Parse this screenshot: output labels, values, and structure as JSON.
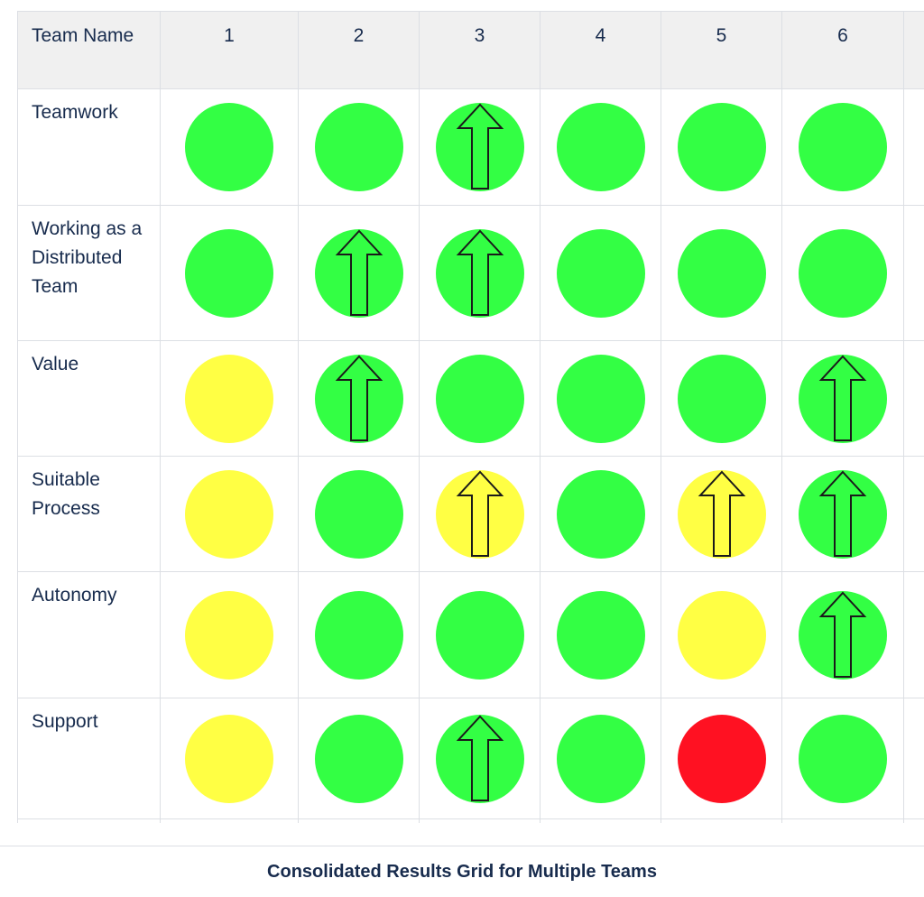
{
  "table": {
    "header": [
      "Team Name",
      "1",
      "2",
      "3",
      "4",
      "5",
      "6"
    ],
    "rows": [
      {
        "label": "Teamwork",
        "cells": [
          {
            "status": "green",
            "arrow": false
          },
          {
            "status": "green",
            "arrow": false
          },
          {
            "status": "green",
            "arrow": true
          },
          {
            "status": "green",
            "arrow": false
          },
          {
            "status": "green",
            "arrow": false
          },
          {
            "status": "green",
            "arrow": false
          }
        ]
      },
      {
        "label": "Working as a Distributed Team",
        "cells": [
          {
            "status": "green",
            "arrow": false
          },
          {
            "status": "green",
            "arrow": true
          },
          {
            "status": "green",
            "arrow": true
          },
          {
            "status": "green",
            "arrow": false
          },
          {
            "status": "green",
            "arrow": false
          },
          {
            "status": "green",
            "arrow": false
          }
        ]
      },
      {
        "label": "Value",
        "cells": [
          {
            "status": "yellow",
            "arrow": false
          },
          {
            "status": "green",
            "arrow": true
          },
          {
            "status": "green",
            "arrow": false
          },
          {
            "status": "green",
            "arrow": false
          },
          {
            "status": "green",
            "arrow": false
          },
          {
            "status": "green",
            "arrow": true
          }
        ]
      },
      {
        "label": "Suitable Process",
        "cells": [
          {
            "status": "yellow",
            "arrow": false
          },
          {
            "status": "green",
            "arrow": false
          },
          {
            "status": "yellow",
            "arrow": true
          },
          {
            "status": "green",
            "arrow": false
          },
          {
            "status": "yellow",
            "arrow": true
          },
          {
            "status": "green",
            "arrow": true
          }
        ]
      },
      {
        "label": "Autonomy",
        "cells": [
          {
            "status": "yellow",
            "arrow": false
          },
          {
            "status": "green",
            "arrow": false
          },
          {
            "status": "green",
            "arrow": false
          },
          {
            "status": "green",
            "arrow": false
          },
          {
            "status": "yellow",
            "arrow": false
          },
          {
            "status": "green",
            "arrow": true
          }
        ]
      },
      {
        "label": "Support",
        "cells": [
          {
            "status": "yellow",
            "arrow": false
          },
          {
            "status": "green",
            "arrow": false
          },
          {
            "status": "green",
            "arrow": true
          },
          {
            "status": "green",
            "arrow": false
          },
          {
            "status": "red",
            "arrow": false
          },
          {
            "status": "green",
            "arrow": false
          }
        ]
      }
    ]
  },
  "colors": {
    "green": "#33ff44",
    "yellow": "#ffff44",
    "red": "#ff1122",
    "arrow_stroke": "#1a1a1a",
    "text": "#172b4d"
  },
  "caption": "Consolidated Results Grid for Multiple Teams"
}
